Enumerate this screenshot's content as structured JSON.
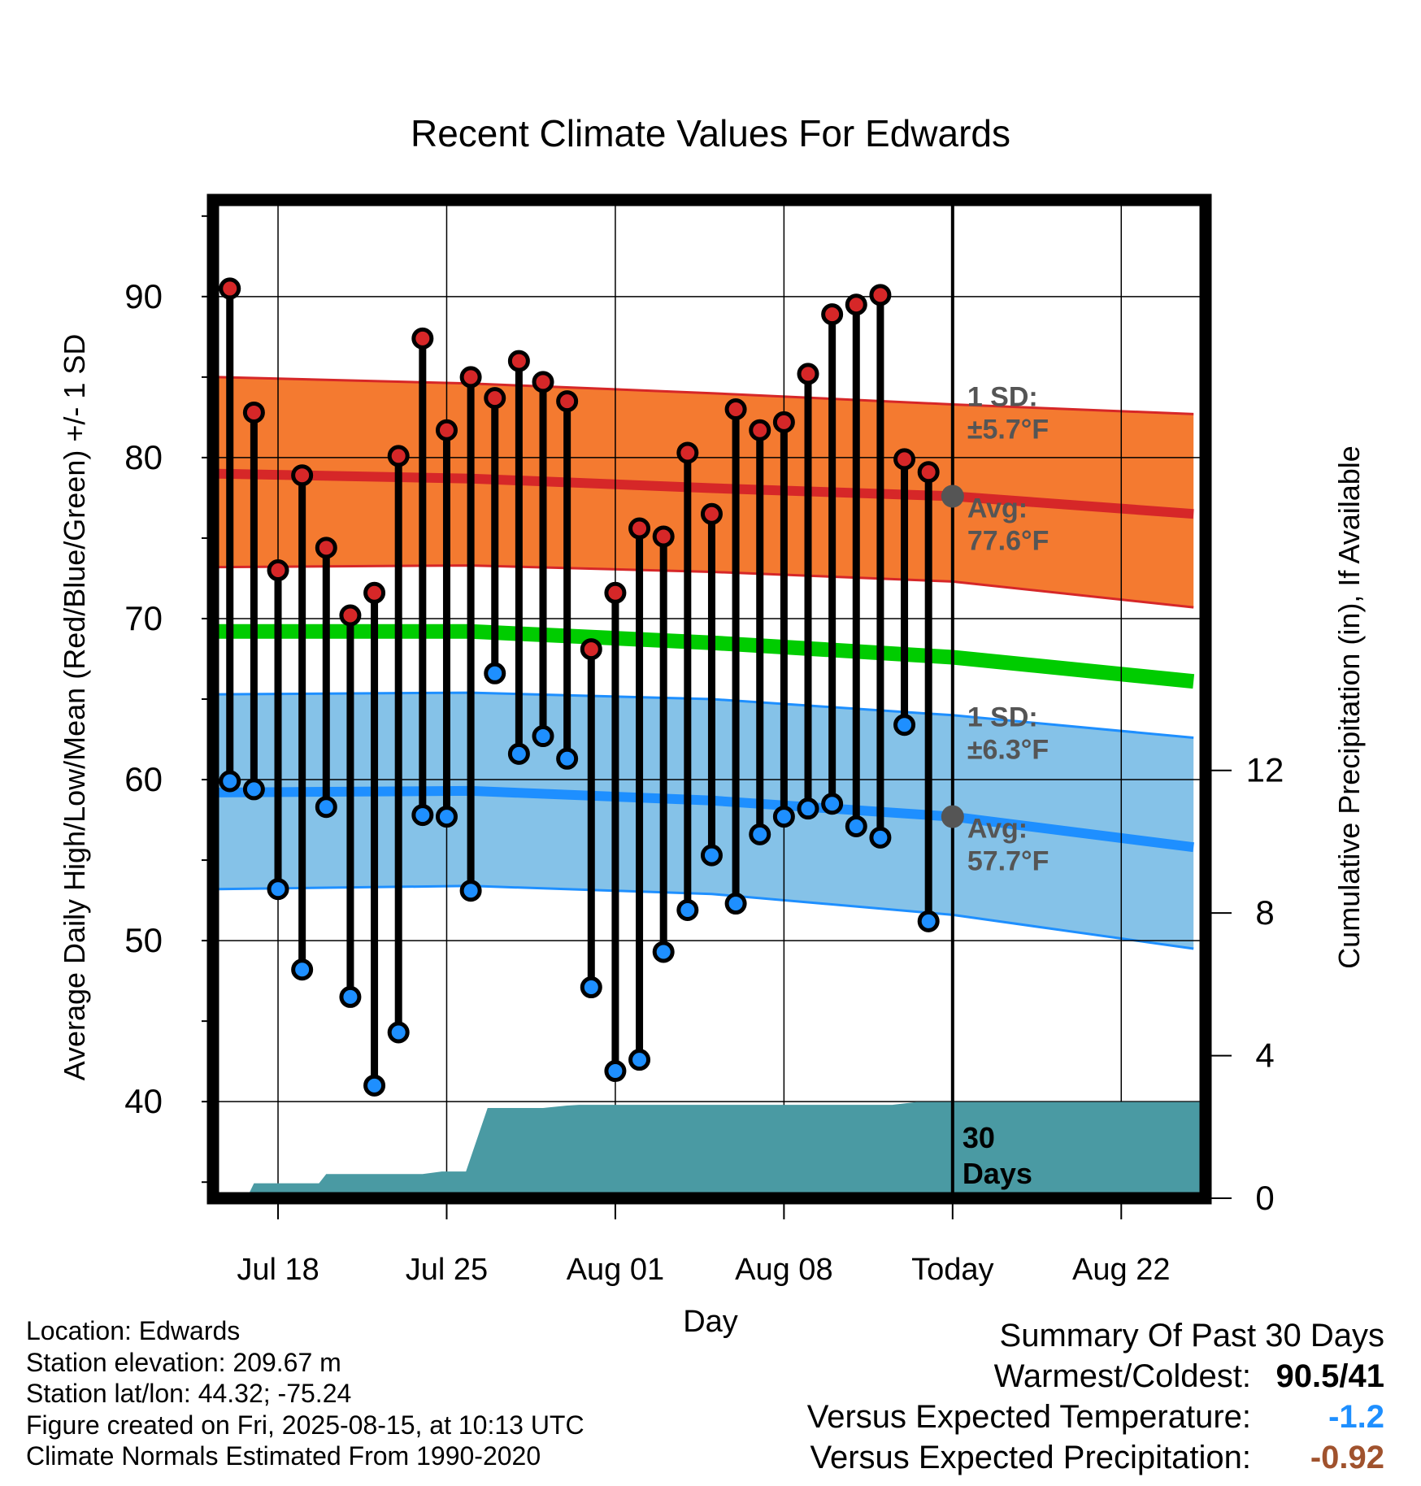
{
  "chart_data": {
    "type": "line",
    "title": "Recent Climate Values For Edwards",
    "xlabel": "Day",
    "ylabel": "Average Daily High/Low/Mean (Red/Blue/Green) +/- 1 SD",
    "y2label": "Cumulative Precipitation (in), If Available",
    "ylim": [
      34,
      96
    ],
    "y_ticks": [
      40,
      50,
      60,
      70,
      80,
      90
    ],
    "y2lim": [
      0,
      28
    ],
    "y2_ticks": [
      0,
      4,
      8,
      12
    ],
    "grid": true,
    "x_day_range": [
      -30.7,
      10.5
    ],
    "x_ticks": [
      {
        "day": -28,
        "label": "Jul 18"
      },
      {
        "day": -21,
        "label": "Jul 25"
      },
      {
        "day": -14,
        "label": "Aug 01"
      },
      {
        "day": -7,
        "label": "Aug 08"
      },
      {
        "day": 0,
        "label": "Today"
      },
      {
        "day": 7,
        "label": "Aug 22"
      }
    ],
    "today_label": "30 Days",
    "series": [
      {
        "name": "High",
        "color": "#d62728",
        "x": [
          -30,
          -29,
          -28,
          -27,
          -26,
          -25,
          -24,
          -23,
          -22,
          -21,
          -20,
          -19,
          -18,
          -17,
          -16,
          -15,
          -14,
          -13,
          -12,
          -11,
          -10,
          -9,
          -8,
          -7,
          -6,
          -5,
          -4,
          -3,
          -2,
          -1
        ],
        "values": [
          90.5,
          82.8,
          73.0,
          78.9,
          74.4,
          70.2,
          71.6,
          80.1,
          87.4,
          81.7,
          85.0,
          83.7,
          86.0,
          84.7,
          83.5,
          68.1,
          71.6,
          75.6,
          75.1,
          80.3,
          76.5,
          83.0,
          81.7,
          82.2,
          85.2,
          88.9,
          89.5,
          90.1,
          79.9,
          79.1
        ]
      },
      {
        "name": "Low",
        "color": "#1e8fff",
        "x": [
          -30,
          -29,
          -28,
          -27,
          -26,
          -25,
          -24,
          -23,
          -22,
          -21,
          -20,
          -19,
          -18,
          -17,
          -16,
          -15,
          -14,
          -13,
          -12,
          -11,
          -10,
          -9,
          -8,
          -7,
          -6,
          -5,
          -4,
          -3,
          -2,
          -1
        ],
        "values": [
          59.9,
          59.4,
          53.2,
          48.2,
          58.3,
          46.5,
          41.0,
          44.3,
          57.8,
          57.7,
          53.1,
          66.6,
          61.6,
          62.7,
          61.3,
          47.1,
          41.9,
          42.6,
          49.3,
          51.9,
          55.3,
          52.3,
          56.6,
          57.7,
          58.2,
          58.5,
          57.1,
          56.4,
          63.4,
          51.2
        ]
      },
      {
        "name": "Avg High",
        "color": "#d62728",
        "x": [
          -30.5,
          -20,
          -10,
          0,
          10
        ],
        "values": [
          79.0,
          78.7,
          78.1,
          77.6,
          76.5
        ]
      },
      {
        "name": "Avg Mean",
        "color": "#00cc00",
        "x": [
          -30.5,
          -20,
          -10,
          0,
          10
        ],
        "values": [
          69.2,
          69.2,
          68.5,
          67.6,
          66.1
        ]
      },
      {
        "name": "Avg Low",
        "color": "#1e8fff",
        "x": [
          -30.5,
          -20,
          -10,
          0,
          10
        ],
        "values": [
          59.2,
          59.3,
          58.7,
          57.7,
          55.8
        ]
      },
      {
        "name": "Cumulative Precipitation",
        "color": "#4a9aa3",
        "x": [
          -30.6,
          -29.3,
          -29,
          -28,
          -27,
          -26.3,
          -26,
          -25,
          -24,
          -23,
          -22,
          -21.2,
          -20.2,
          -19.3,
          -18,
          -17,
          -16,
          -15.5,
          -14,
          -10,
          -5,
          -3,
          -2.5,
          -1.5,
          0,
          5,
          10.5
        ],
        "values": [
          0,
          0,
          0.42,
          0.42,
          0.42,
          0.42,
          0.68,
          0.68,
          0.68,
          0.68,
          0.68,
          0.75,
          0.75,
          2.53,
          2.53,
          2.53,
          2.6,
          2.62,
          2.62,
          2.62,
          2.62,
          2.62,
          2.62,
          2.7,
          2.7,
          2.7,
          2.7
        ]
      }
    ],
    "bands": [
      {
        "name": "High 1 SD",
        "color": "#f47a30",
        "edge": "#d62728",
        "x": [
          -30.5,
          -20,
          -10,
          0,
          10
        ],
        "upper": [
          85.0,
          84.6,
          84.0,
          83.3,
          82.7
        ],
        "lower": [
          73.2,
          73.3,
          72.9,
          72.3,
          70.7
        ]
      },
      {
        "name": "Low 1 SD",
        "color": "#85c2e8",
        "edge": "#1e8fff",
        "x": [
          -30.5,
          -20,
          -10,
          0,
          10
        ],
        "upper": [
          65.3,
          65.4,
          65.0,
          64.0,
          62.6
        ],
        "lower": [
          53.2,
          53.4,
          52.9,
          51.6,
          49.5
        ]
      }
    ],
    "annotations": {
      "high_sd_label": "1 SD:",
      "high_sd_value": "±5.7°F",
      "high_avg_label": "Avg:",
      "high_avg_value": "77.6°F",
      "high_avg_today": 77.6,
      "low_sd_label": "1 SD:",
      "low_sd_value": "±6.3°F",
      "low_avg_label": "Avg:",
      "low_avg_value": "57.7°F",
      "low_avg_today": 57.7
    }
  },
  "meta": {
    "location": "Location: Edwards",
    "elevation": "Station elevation: 209.67 m",
    "latlon": "Station lat/lon: 44.32; -75.24",
    "created": "Figure created on Fri, 2025-08-15, at 10:13 UTC",
    "normals": "Climate Normals Estimated From 1990-2020"
  },
  "summary": {
    "title": "Summary Of Past 30 Days",
    "warmest_label": "Warmest/Coldest:",
    "warmest_value": "90.5/41",
    "temp_label": "Versus Expected Temperature:",
    "temp_value": "-1.2",
    "temp_color": "#1e8fff",
    "precip_label": "Versus Expected Precipitation:",
    "precip_value": "-0.92",
    "precip_color": "#a0522d"
  }
}
